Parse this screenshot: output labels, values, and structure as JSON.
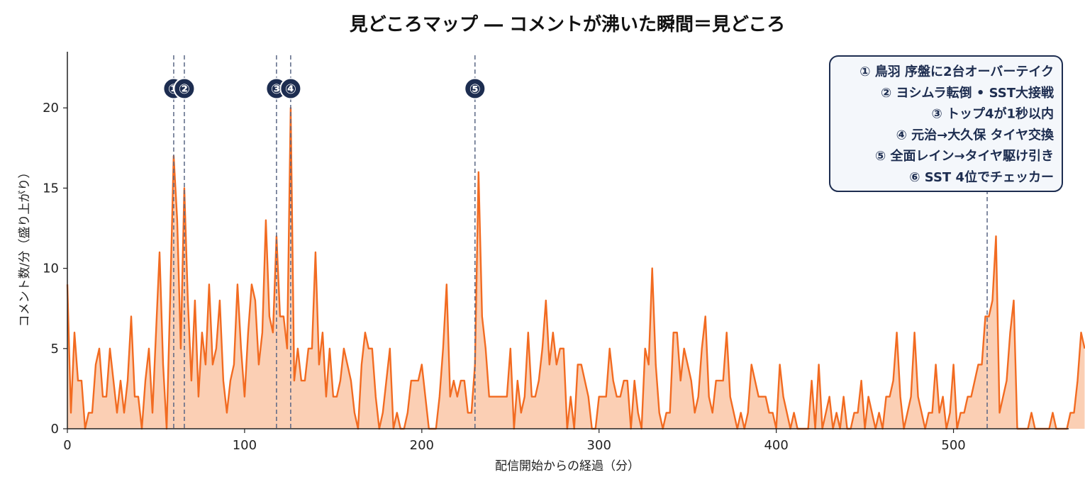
{
  "chart_data": {
    "type": "area",
    "title": "見どころマップ ― コメントが沸いた瞬間＝見どころ",
    "xlabel": "配信開始からの経過（分）",
    "ylabel": "コメント数/分（盛り上がり）",
    "xlim": [
      0,
      565
    ],
    "ylim": [
      0,
      23.5
    ],
    "xticks": [
      0,
      100,
      200,
      300,
      400,
      500
    ],
    "yticks": [
      0,
      5,
      10,
      15,
      20
    ],
    "grid": false,
    "line_color": "#f26b21",
    "fill_color": "#fbcfb4",
    "marker_color": "#1d2d50",
    "vline_color": "#5a6785",
    "legend_bg": "#f4f7fb",
    "legend_position": "top-right",
    "series": [
      {
        "step": 2,
        "values": [
          9,
          1,
          6,
          3,
          3,
          0,
          1,
          1,
          4,
          5,
          2,
          2,
          5,
          3,
          1,
          3,
          1,
          3,
          7,
          2,
          2,
          0,
          3,
          5,
          1,
          6,
          11,
          4,
          0,
          8,
          17,
          13,
          5,
          15,
          8,
          3,
          8,
          2,
          6,
          4,
          9,
          4,
          5,
          8,
          3,
          1,
          3,
          4,
          9,
          5,
          2,
          6,
          9,
          8,
          4,
          6,
          13,
          7,
          6,
          12,
          7,
          7,
          5,
          20,
          3,
          5,
          3,
          3,
          5,
          5,
          11,
          4,
          6,
          2,
          5,
          2,
          2,
          3,
          5,
          4,
          3,
          1,
          0,
          4,
          6,
          5,
          5,
          2,
          0,
          1,
          3,
          5,
          0,
          1,
          0,
          0,
          1,
          3,
          3,
          3,
          4,
          2,
          0,
          0,
          0,
          2,
          5,
          9,
          2,
          3,
          2,
          3,
          3,
          1,
          1,
          4,
          16,
          7,
          5,
          2,
          2,
          2,
          2,
          2,
          2,
          5,
          0,
          3,
          1,
          2,
          6,
          2,
          2,
          3,
          5,
          8,
          4,
          6,
          4,
          5,
          5,
          0,
          2,
          0,
          4,
          4,
          3,
          2,
          0,
          0,
          2,
          2,
          2,
          5,
          3,
          2,
          2,
          3,
          3,
          0,
          3,
          1,
          0,
          5,
          4,
          10,
          4,
          1,
          0,
          1,
          1,
          6,
          6,
          3,
          5,
          4,
          3,
          1,
          2,
          5,
          7,
          2,
          1,
          3,
          3,
          3,
          6,
          2,
          1,
          0,
          1,
          0,
          1,
          4,
          3,
          2,
          2,
          2,
          1,
          1,
          0,
          4,
          2,
          1,
          0,
          1,
          0,
          0,
          0,
          0,
          3,
          0,
          4,
          0,
          1,
          2,
          0,
          1,
          0,
          2,
          0,
          0,
          1,
          1,
          3,
          0,
          2,
          1,
          0,
          1,
          0,
          2,
          2,
          3,
          6,
          2,
          0,
          1,
          2,
          6,
          2,
          1,
          0,
          1,
          1,
          4,
          1,
          2,
          0,
          1,
          4,
          0,
          1,
          1,
          2,
          2,
          3,
          4,
          4,
          7,
          7,
          8,
          12,
          1,
          2,
          3,
          6,
          8,
          0,
          0,
          0,
          0,
          1,
          0,
          0,
          0,
          0,
          0,
          1,
          0,
          0,
          0,
          0,
          1,
          1,
          3,
          6,
          5
        ]
      }
    ],
    "highlights": [
      {
        "id": "①",
        "x": 60,
        "label": "① 鳥羽 序盤に2台オーバーテイク"
      },
      {
        "id": "②",
        "x": 66,
        "label": "② ヨシムラ転倒 • SST大接戦"
      },
      {
        "id": "③",
        "x": 118,
        "label": "③ トップ4が1秒以内"
      },
      {
        "id": "④",
        "x": 126,
        "label": "④ 元治→大久保 タイヤ交換"
      },
      {
        "id": "⑤",
        "x": 230,
        "label": "⑤ 全面レイン→タイヤ駆け引き"
      },
      {
        "id": "⑥",
        "x": 519,
        "label": "⑥ SST 4位でチェッカー"
      }
    ]
  }
}
